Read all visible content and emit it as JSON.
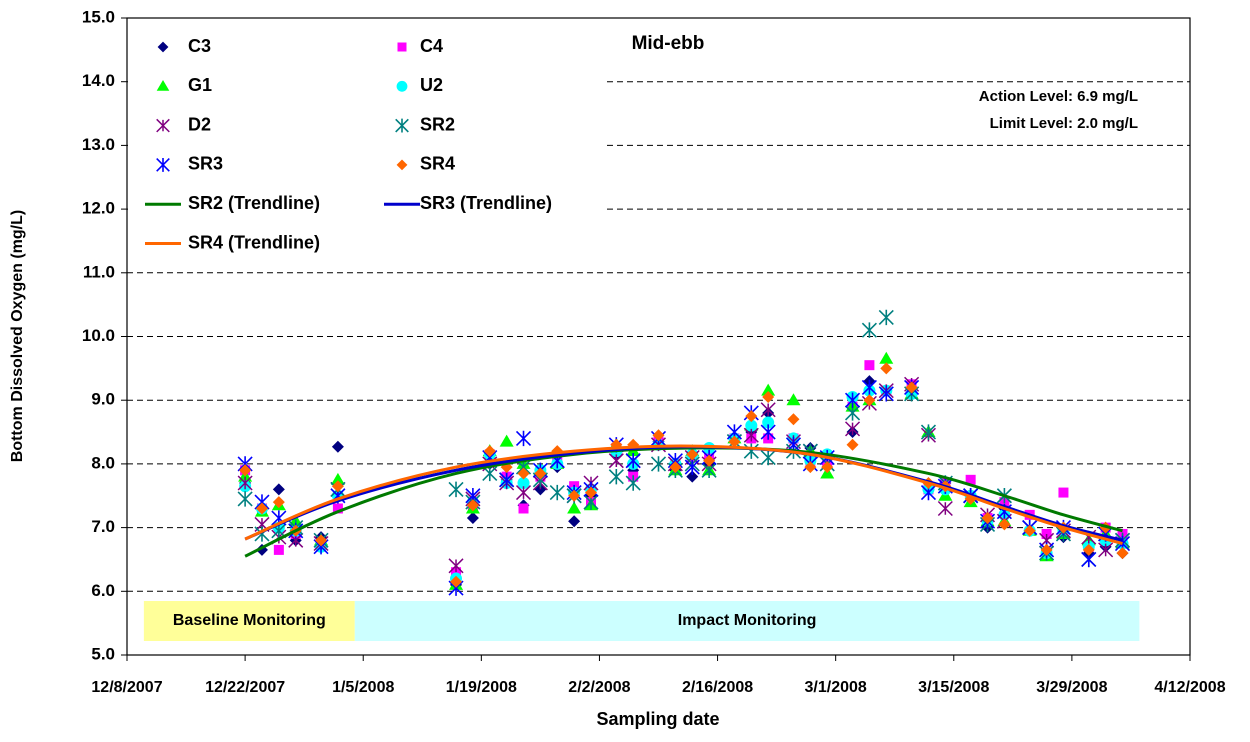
{
  "chart_data": {
    "type": "scatter",
    "title": "Mid-ebb",
    "annotations": [
      "Action Level: 6.9 mg/L",
      "Limit Level: 2.0 mg/L"
    ],
    "x_label": "Sampling date",
    "y_label": "Bottom Dissolved Oxygen (mg/L)",
    "xlim": [
      "2007-12-08",
      "2008-04-12"
    ],
    "xticks": [
      {
        "value": "2007-12-08",
        "label": "12/8/2007"
      },
      {
        "value": "2007-12-22",
        "label": "12/22/2007"
      },
      {
        "value": "2008-01-05",
        "label": "1/5/2008"
      },
      {
        "value": "2008-01-19",
        "label": "1/19/2008"
      },
      {
        "value": "2008-02-02",
        "label": "2/2/2008"
      },
      {
        "value": "2008-02-16",
        "label": "2/16/2008"
      },
      {
        "value": "2008-03-01",
        "label": "3/1/2008"
      },
      {
        "value": "2008-03-15",
        "label": "3/15/2008"
      },
      {
        "value": "2008-03-29",
        "label": "3/29/2008"
      },
      {
        "value": "2008-04-12",
        "label": "4/12/2008"
      }
    ],
    "ylim": [
      5,
      15
    ],
    "yticks": [
      {
        "value": 5,
        "label": "5.0"
      },
      {
        "value": 6,
        "label": "6.0"
      },
      {
        "value": 7,
        "label": "7.0"
      },
      {
        "value": 8,
        "label": "8.0"
      },
      {
        "value": 9,
        "label": "9.0"
      },
      {
        "value": 10,
        "label": "10.0"
      },
      {
        "value": 11,
        "label": "11.0"
      },
      {
        "value": 12,
        "label": "12.0"
      },
      {
        "value": 13,
        "label": "13.0"
      },
      {
        "value": 14,
        "label": "14.0"
      },
      {
        "value": 15,
        "label": "15.0"
      }
    ],
    "grid": true,
    "periods": [
      {
        "label": "Baseline Monitoring",
        "start": "2007-12-10",
        "end": "2008-01-04",
        "color": "#ffff99"
      },
      {
        "label": "Impact Monitoring",
        "start": "2008-01-04",
        "end": "2008-04-06",
        "color": "#ccffff"
      }
    ],
    "x": [
      "2007-12-22",
      "2007-12-24",
      "2007-12-26",
      "2007-12-28",
      "2007-12-31",
      "2008-01-02",
      "2008-01-16",
      "2008-01-18",
      "2008-01-20",
      "2008-01-22",
      "2008-01-24",
      "2008-01-26",
      "2008-01-28",
      "2008-01-30",
      "2008-02-01",
      "2008-02-04",
      "2008-02-06",
      "2008-02-09",
      "2008-02-11",
      "2008-02-13",
      "2008-02-15",
      "2008-02-18",
      "2008-02-20",
      "2008-02-22",
      "2008-02-25",
      "2008-02-27",
      "2008-02-29",
      "2008-03-03",
      "2008-03-05",
      "2008-03-07",
      "2008-03-10",
      "2008-03-12",
      "2008-03-14",
      "2008-03-17",
      "2008-03-19",
      "2008-03-21",
      "2008-03-24",
      "2008-03-26",
      "2008-03-28",
      "2008-03-31",
      "2008-04-02",
      "2008-04-04"
    ],
    "series": [
      {
        "name": "C3",
        "color": "#000080",
        "marker": "diamond",
        "values": [
          7.7,
          6.65,
          7.6,
          6.8,
          6.85,
          8.27,
          6.1,
          7.15,
          8.0,
          7.75,
          7.35,
          7.6,
          7.95,
          7.1,
          7.5,
          8.15,
          7.9,
          8.35,
          7.9,
          7.8,
          8.0,
          8.4,
          8.5,
          8.8,
          8.4,
          8.25,
          8.0,
          8.5,
          9.3,
          9.15,
          9.2,
          7.6,
          7.7,
          7.5,
          7.0,
          7.3,
          6.95,
          6.6,
          6.85,
          6.6,
          6.7,
          6.6
        ]
      },
      {
        "name": "C4",
        "color": "#ff00ff",
        "marker": "square",
        "values": [
          7.9,
          7.3,
          6.65,
          6.9,
          6.7,
          7.3,
          6.3,
          7.35,
          8.15,
          7.8,
          7.3,
          7.8,
          8.1,
          7.65,
          7.4,
          8.25,
          7.8,
          8.4,
          8.0,
          8.1,
          8.1,
          8.4,
          8.4,
          8.4,
          8.4,
          8.05,
          8.0,
          8.9,
          9.55,
          9.15,
          9.25,
          7.6,
          7.7,
          7.75,
          7.15,
          7.4,
          7.2,
          6.9,
          7.55,
          6.7,
          7.0,
          6.9
        ]
      },
      {
        "name": "G1",
        "color": "#00ff00",
        "marker": "triangle",
        "values": [
          7.8,
          7.25,
          7.35,
          7.1,
          6.8,
          7.75,
          6.1,
          7.3,
          8.2,
          8.35,
          8.0,
          7.9,
          8.0,
          7.3,
          7.35,
          8.3,
          8.2,
          8.3,
          7.9,
          8.2,
          7.9,
          8.4,
          8.6,
          9.15,
          9.0,
          8.2,
          7.85,
          8.9,
          9.0,
          9.65,
          9.1,
          8.5,
          7.5,
          7.4,
          7.1,
          7.1,
          6.95,
          6.55,
          6.9,
          6.8,
          6.9,
          6.75
        ]
      },
      {
        "name": "U2",
        "color": "#00ffff",
        "marker": "circle",
        "values": [
          7.65,
          7.3,
          7.0,
          6.95,
          6.7,
          7.5,
          6.2,
          7.4,
          8.15,
          7.7,
          7.7,
          7.9,
          8.0,
          7.55,
          7.6,
          8.2,
          8.0,
          8.3,
          8.0,
          8.15,
          8.25,
          8.4,
          8.6,
          8.65,
          8.4,
          8.05,
          8.15,
          9.05,
          9.15,
          9.15,
          9.1,
          7.6,
          7.6,
          7.5,
          7.1,
          7.2,
          6.95,
          6.6,
          6.95,
          6.7,
          6.8,
          6.75
        ]
      },
      {
        "name": "D2",
        "color": "#800080",
        "marker": "star",
        "values": [
          7.7,
          7.05,
          6.85,
          6.8,
          6.75,
          7.6,
          6.4,
          7.45,
          8.0,
          7.7,
          7.55,
          7.7,
          8.05,
          7.5,
          7.7,
          8.05,
          8.05,
          8.3,
          8.0,
          8.1,
          8.0,
          8.35,
          8.45,
          8.85,
          8.35,
          8.2,
          8.0,
          8.55,
          8.95,
          9.15,
          9.25,
          8.45,
          7.3,
          7.5,
          7.2,
          7.1,
          7.0,
          6.8,
          6.95,
          6.85,
          6.65,
          6.8
        ]
      },
      {
        "name": "SR2",
        "color": "#008080",
        "marker": "asterisk",
        "values": [
          7.45,
          6.9,
          6.95,
          7.0,
          6.8,
          7.6,
          7.6,
          7.4,
          7.85,
          7.75,
          7.95,
          7.75,
          7.55,
          7.5,
          7.4,
          7.8,
          7.7,
          8.0,
          7.9,
          8.0,
          7.9,
          8.35,
          8.2,
          8.1,
          8.2,
          8.2,
          8.0,
          8.8,
          10.1,
          10.3,
          9.1,
          8.5,
          7.7,
          7.5,
          7.05,
          7.5,
          7.0,
          6.6,
          6.9,
          6.5,
          6.9,
          6.8
        ]
      },
      {
        "name": "SR3",
        "color": "#0000ff",
        "marker": "asterisk",
        "values": [
          8.0,
          7.4,
          7.15,
          6.95,
          6.7,
          7.5,
          6.05,
          7.5,
          8.1,
          7.75,
          8.4,
          7.9,
          8.05,
          7.55,
          7.6,
          8.3,
          8.05,
          8.4,
          8.05,
          7.95,
          8.1,
          8.5,
          8.8,
          8.5,
          8.3,
          8.0,
          8.1,
          9.0,
          9.2,
          9.1,
          9.2,
          7.55,
          7.65,
          7.5,
          7.1,
          7.25,
          7.0,
          6.65,
          7.0,
          6.5,
          6.9,
          6.75
        ]
      },
      {
        "name": "SR4",
        "color": "#ff6600",
        "marker": "diamond",
        "values": [
          7.9,
          7.3,
          7.4,
          6.95,
          6.8,
          7.65,
          6.15,
          7.35,
          8.2,
          7.95,
          7.85,
          7.85,
          8.2,
          7.5,
          7.55,
          8.3,
          8.3,
          8.45,
          7.95,
          8.15,
          8.05,
          8.35,
          8.75,
          9.05,
          8.7,
          7.95,
          7.95,
          8.3,
          9.0,
          9.5,
          9.2,
          7.7,
          7.65,
          7.45,
          7.15,
          7.05,
          6.95,
          6.65,
          7.0,
          6.65,
          7.0,
          6.6
        ]
      },
      {
        "name": "SR2 (Trendline)",
        "color": "#007a00",
        "type": "line",
        "x": [
          "2007-12-22",
          "2008-01-02",
          "2008-01-16",
          "2008-01-30",
          "2008-02-13",
          "2008-02-27",
          "2008-03-12",
          "2008-03-21",
          "2008-03-28",
          "2008-04-04"
        ],
        "values": [
          6.55,
          7.25,
          7.85,
          8.15,
          8.25,
          8.18,
          7.85,
          7.5,
          7.2,
          6.95
        ]
      },
      {
        "name": "SR3 (Trendline)",
        "color": "#0000cc",
        "type": "line",
        "x": [
          "2007-12-22",
          "2008-01-02",
          "2008-01-16",
          "2008-01-30",
          "2008-02-13",
          "2008-02-27",
          "2008-03-12",
          "2008-03-21",
          "2008-03-28",
          "2008-04-04"
        ],
        "values": [
          6.82,
          7.42,
          7.9,
          8.17,
          8.27,
          8.15,
          7.72,
          7.33,
          7.03,
          6.8
        ]
      },
      {
        "name": "SR4 (Trendline)",
        "color": "#ff6600",
        "type": "line",
        "x": [
          "2007-12-22",
          "2008-01-02",
          "2008-01-16",
          "2008-01-30",
          "2008-02-13",
          "2008-02-27",
          "2008-03-12",
          "2008-03-21",
          "2008-03-28",
          "2008-04-04"
        ],
        "values": [
          6.82,
          7.45,
          7.95,
          8.2,
          8.28,
          8.15,
          7.7,
          7.3,
          7.0,
          6.75
        ]
      }
    ]
  }
}
